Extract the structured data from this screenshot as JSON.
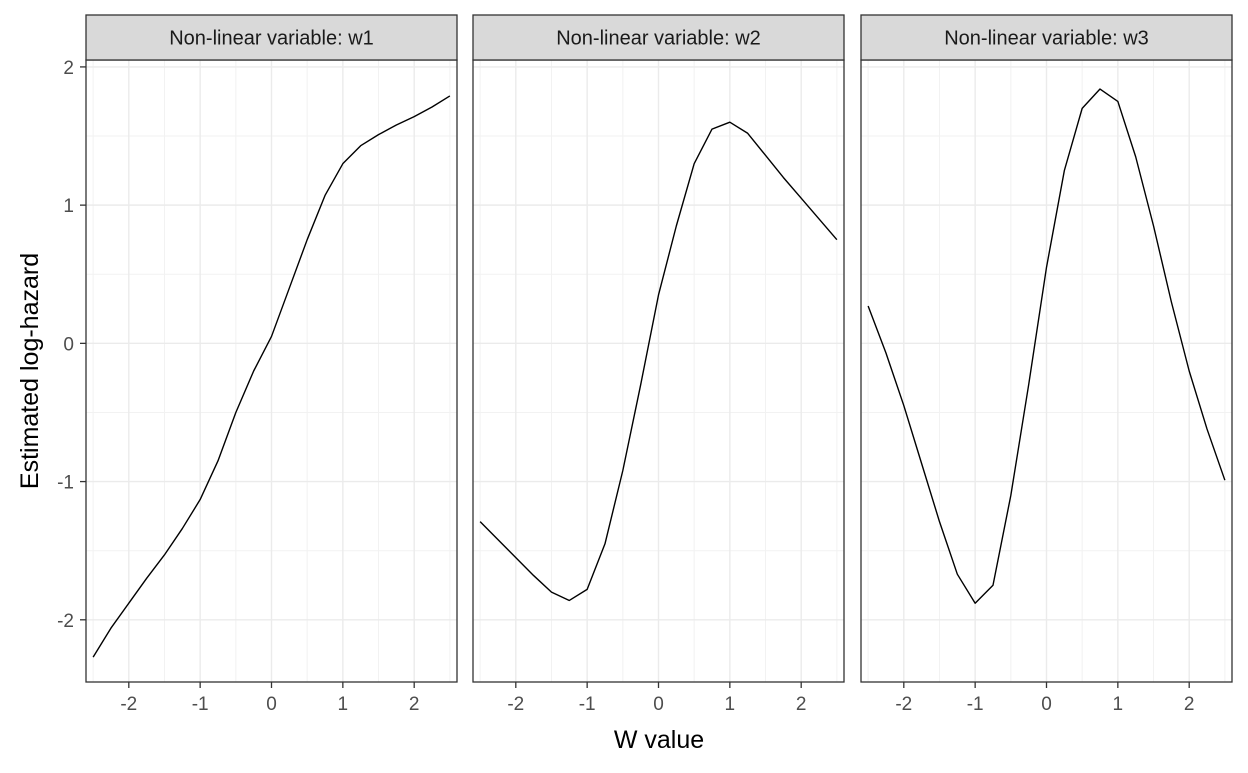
{
  "chart_data": {
    "type": "line",
    "xlabel": "W value",
    "ylabel": "Estimated log-hazard",
    "xlim": [
      -2.6,
      2.6
    ],
    "ylim": [
      -2.45,
      2.05
    ],
    "x_ticks": [
      -2,
      -1,
      0,
      1,
      2
    ],
    "y_ticks": [
      -2,
      -1,
      0,
      1,
      2
    ],
    "x_tick_labels": [
      "-2",
      "-1",
      "0",
      "1",
      "2"
    ],
    "y_tick_labels": [
      "-2",
      "-1",
      "0",
      "1",
      "2"
    ],
    "grid": true,
    "line_color": "#000000",
    "panels": [
      {
        "title": "Non-linear variable: w1",
        "x": [
          -2.5,
          -2.25,
          -2.0,
          -1.75,
          -1.5,
          -1.25,
          -1.0,
          -0.75,
          -0.5,
          -0.25,
          0.0,
          0.25,
          0.5,
          0.75,
          1.0,
          1.25,
          1.5,
          1.75,
          2.0,
          2.25,
          2.5
        ],
        "y": [
          -2.27,
          -2.06,
          -1.88,
          -1.7,
          -1.53,
          -1.34,
          -1.13,
          -0.85,
          -0.5,
          -0.2,
          0.05,
          0.4,
          0.75,
          1.07,
          1.3,
          1.43,
          1.51,
          1.58,
          1.64,
          1.71,
          1.79
        ]
      },
      {
        "title": "Non-linear variable: w2",
        "x": [
          -2.5,
          -2.25,
          -2.0,
          -1.75,
          -1.5,
          -1.25,
          -1.0,
          -0.75,
          -0.5,
          -0.25,
          0.0,
          0.25,
          0.5,
          0.75,
          1.0,
          1.25,
          1.5,
          1.75,
          2.0,
          2.25,
          2.5
        ],
        "y": [
          -1.29,
          -1.42,
          -1.55,
          -1.68,
          -1.8,
          -1.86,
          -1.78,
          -1.45,
          -0.92,
          -0.3,
          0.35,
          0.85,
          1.3,
          1.55,
          1.6,
          1.52,
          1.36,
          1.2,
          1.05,
          0.9,
          0.75
        ]
      },
      {
        "title": "Non-linear variable: w3",
        "x": [
          -2.5,
          -2.25,
          -2.0,
          -1.75,
          -1.5,
          -1.25,
          -1.0,
          -0.75,
          -0.5,
          -0.25,
          0.0,
          0.25,
          0.5,
          0.75,
          1.0,
          1.25,
          1.5,
          1.75,
          2.0,
          2.25,
          2.5
        ],
        "y": [
          0.27,
          -0.07,
          -0.45,
          -0.87,
          -1.29,
          -1.67,
          -1.88,
          -1.75,
          -1.1,
          -0.3,
          0.55,
          1.25,
          1.7,
          1.84,
          1.75,
          1.35,
          0.85,
          0.3,
          -0.2,
          -0.62,
          -0.99
        ]
      }
    ]
  }
}
